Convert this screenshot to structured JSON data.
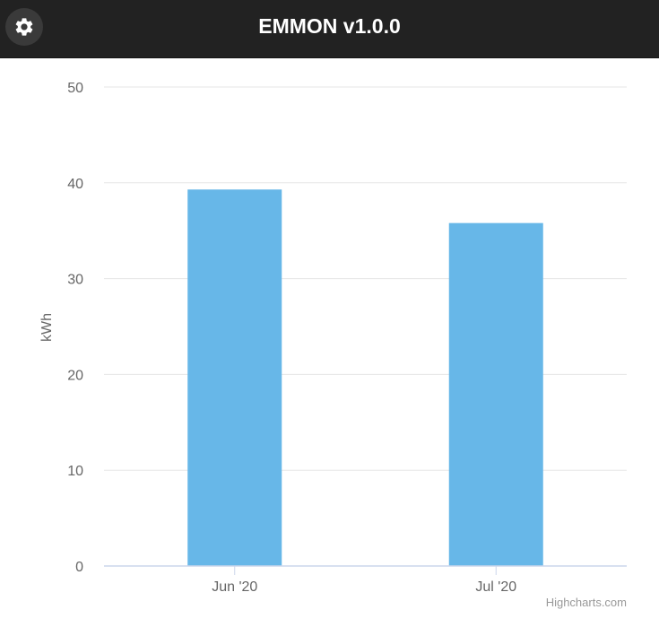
{
  "header": {
    "title": "EMMON v1.0.0",
    "settings_icon": "gear-icon"
  },
  "chart_data": {
    "type": "bar",
    "categories": [
      "Jun '20",
      "Jul '20"
    ],
    "values": [
      39.3,
      35.8
    ],
    "title": "",
    "xlabel": "",
    "ylabel": "kWh",
    "ylim": [
      0,
      50
    ],
    "yticks": [
      0,
      10,
      20,
      30,
      40,
      50
    ],
    "grid": true,
    "bar_color": "#67b7e8",
    "credits": "Highcharts.com"
  }
}
